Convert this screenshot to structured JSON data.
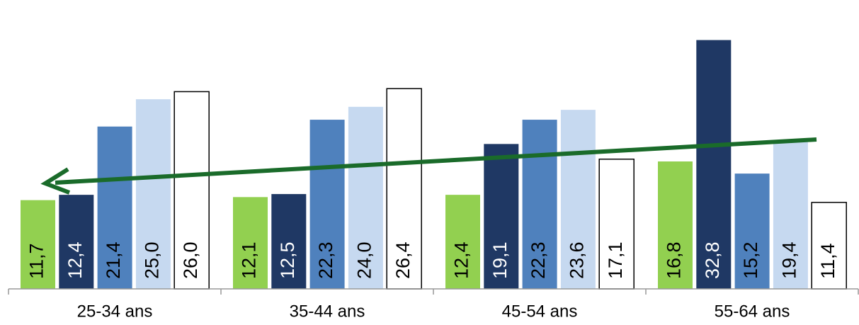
{
  "chart_data": {
    "type": "bar",
    "categories": [
      "25-34 ans",
      "35-44 ans",
      "45-54 ans",
      "55-64 ans"
    ],
    "series": [
      {
        "color": "#92d050",
        "values": [
          11.7,
          12.1,
          12.4,
          16.8
        ],
        "value_labels": [
          "11,7",
          "12,1",
          "12,4",
          "16,8"
        ]
      },
      {
        "color": "#1f3864",
        "values": [
          12.4,
          12.5,
          19.1,
          32.8
        ],
        "value_labels": [
          "12,4",
          "12,5",
          "19,1",
          "32,8"
        ]
      },
      {
        "color": "#4f81bd",
        "values": [
          21.4,
          22.3,
          22.3,
          15.2
        ],
        "value_labels": [
          "21,4",
          "22,3",
          "22,3",
          "15,2"
        ]
      },
      {
        "color": "#c6d9f0",
        "values": [
          25.0,
          24.0,
          23.6,
          19.4
        ],
        "value_labels": [
          "25,0",
          "24,0",
          "23,6",
          "19,4"
        ]
      },
      {
        "color": "#ffffff",
        "values": [
          26.0,
          26.4,
          17.1,
          11.4
        ],
        "value_labels": [
          "26,0",
          "26,4",
          "17,1",
          "11,4"
        ]
      }
    ],
    "ylim": [
      0,
      35
    ]
  }
}
